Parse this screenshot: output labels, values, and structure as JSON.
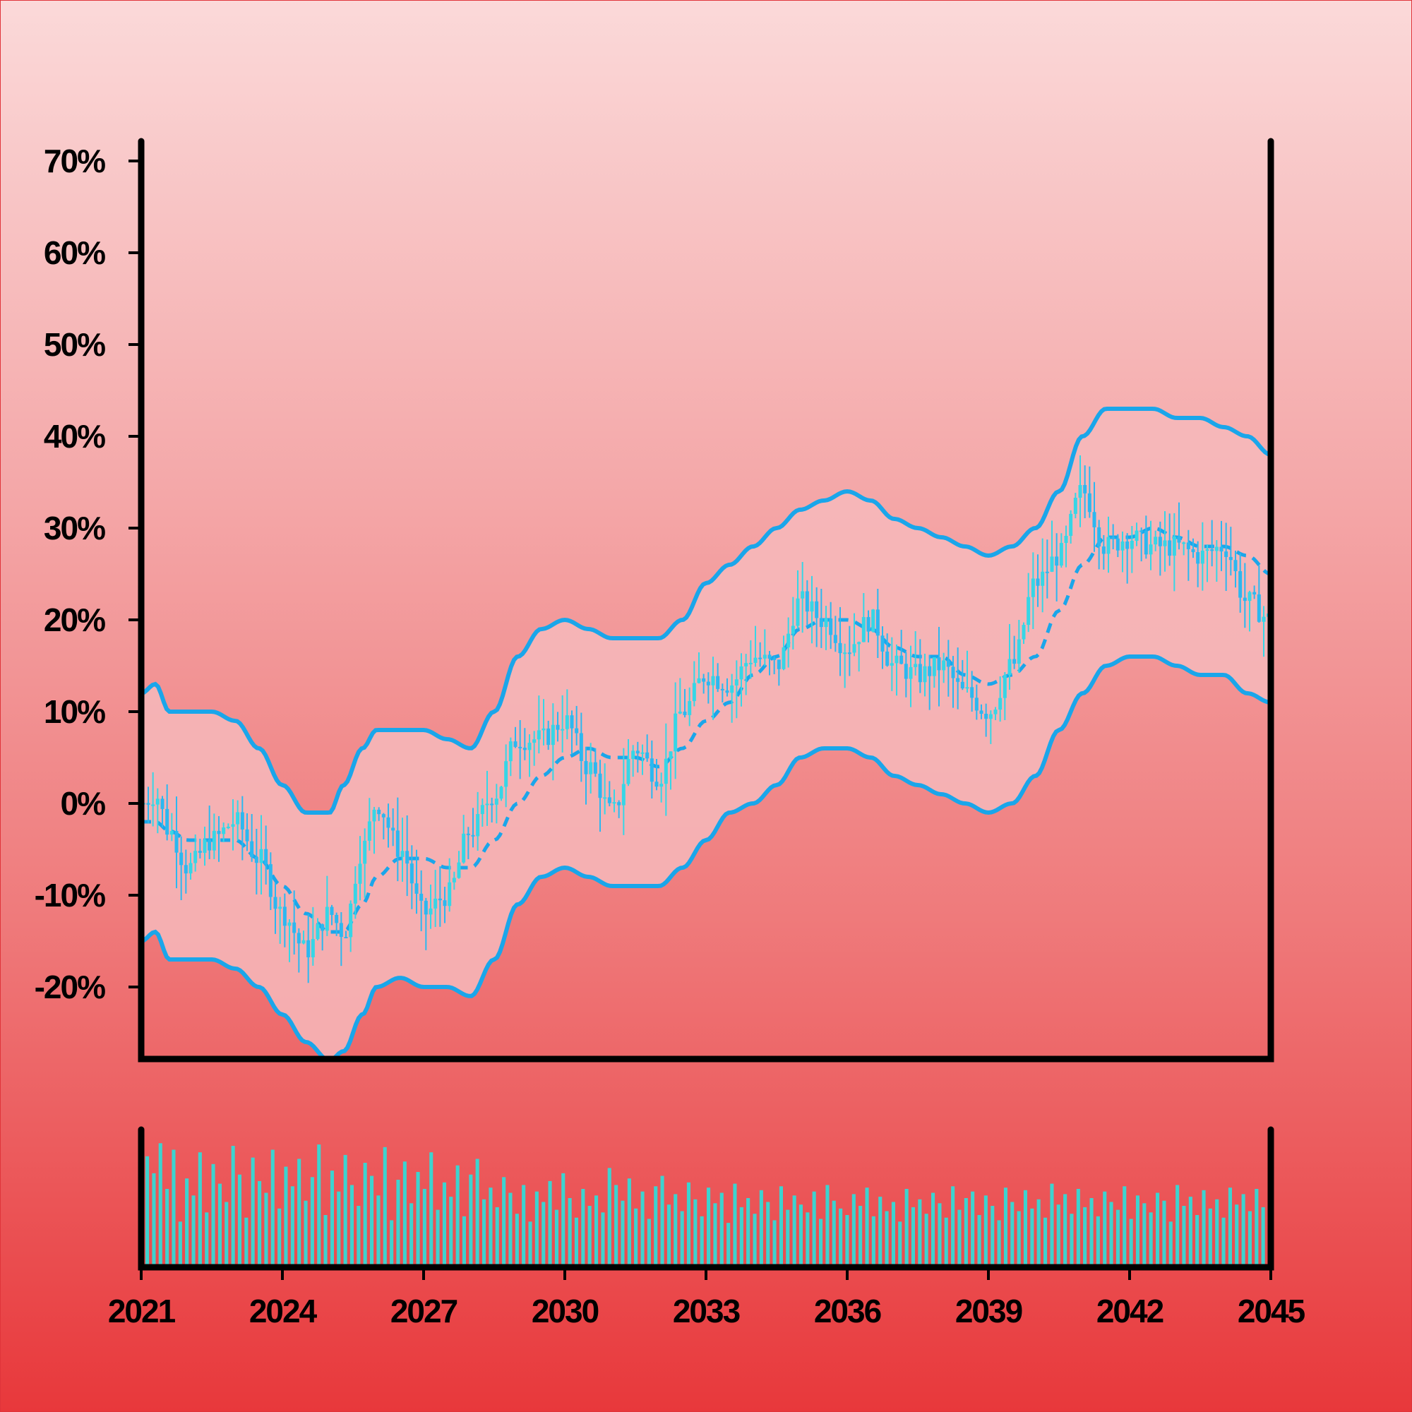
{
  "chart_data": {
    "type": "candlestick",
    "title": "",
    "xlabel": "",
    "ylabel": "",
    "x_range": [
      2021.0,
      2045.0
    ],
    "ylim": [
      -27,
      72
    ],
    "grid": false,
    "legend": "none",
    "y_ticks": [
      "70%",
      "60%",
      "50%",
      "40%",
      "30%",
      "20%",
      "10%",
      "0%",
      "-10%",
      "-20%"
    ],
    "y_tick_values": [
      70,
      60,
      50,
      40,
      30,
      20,
      10,
      0,
      -10,
      -20
    ],
    "x_ticks": [
      "2021",
      "2024",
      "2027",
      "2030",
      "2033",
      "2036",
      "2039",
      "2042",
      "2045"
    ],
    "x_tick_values": [
      2021,
      2024,
      2027,
      2030,
      2033,
      2036,
      2039,
      2042,
      2045
    ],
    "colors": {
      "candle_up": "#36d6e6",
      "candle_down": "#2bb8f0",
      "band": "#1aa6ea",
      "band_fill": "#f6b9bb",
      "volume": "#3dd3cf",
      "axis": "#000000"
    },
    "price": {
      "x": [
        2021.0,
        2021.3,
        2021.6,
        2022.0,
        2022.5,
        2023.0,
        2023.5,
        2024.0,
        2024.5,
        2025.0,
        2025.3,
        2025.7,
        2026.0,
        2026.5,
        2027.0,
        2027.5,
        2028.0,
        2028.5,
        2029.0,
        2029.5,
        2030.0,
        2030.5,
        2031.0,
        2031.5,
        2032.0,
        2032.5,
        2033.0,
        2033.5,
        2034.0,
        2034.5,
        2035.0,
        2035.5,
        2036.0,
        2036.5,
        2037.0,
        2037.5,
        2038.0,
        2038.5,
        2039.0,
        2039.5,
        2040.0,
        2040.5,
        2041.0,
        2041.5,
        2042.0,
        2042.5,
        2043.0,
        2043.5,
        2044.0,
        2044.5,
        2045.0
      ],
      "y": [
        0,
        1,
        -3,
        -7,
        -4,
        -2,
        -6,
        -12,
        -16,
        -12,
        -14,
        -5,
        0,
        -5,
        -12,
        -10,
        -3,
        1,
        7,
        7,
        9,
        4,
        -1,
        6,
        3,
        10,
        14,
        13,
        16,
        15,
        22,
        20,
        17,
        20,
        15,
        14,
        15,
        12,
        10,
        15,
        24,
        27,
        34,
        28,
        29,
        28,
        28,
        27,
        28,
        22,
        20
      ],
      "ma": [
        -2,
        -2,
        -3,
        -4,
        -4,
        -4,
        -6,
        -9,
        -12,
        -14,
        -14,
        -11,
        -8,
        -6,
        -6,
        -7,
        -7,
        -4,
        0,
        3,
        5,
        6,
        5,
        5,
        4,
        6,
        9,
        11,
        14,
        16,
        19,
        20,
        20,
        19,
        17,
        16,
        16,
        14,
        13,
        14,
        16,
        21,
        26,
        29,
        29,
        30,
        29,
        28,
        28,
        27,
        25
      ],
      "band_upper": [
        12,
        13,
        10,
        10,
        10,
        9,
        6,
        2,
        -1,
        -1,
        2,
        6,
        8,
        8,
        8,
        7,
        6,
        10,
        16,
        19,
        20,
        19,
        18,
        18,
        18,
        20,
        24,
        26,
        28,
        30,
        32,
        33,
        34,
        33,
        31,
        30,
        29,
        28,
        27,
        28,
        30,
        34,
        40,
        43,
        43,
        43,
        42,
        42,
        41,
        40,
        38
      ],
      "band_lower": [
        -15,
        -14,
        -17,
        -17,
        -17,
        -18,
        -20,
        -23,
        -26,
        -28,
        -27,
        -23,
        -20,
        -19,
        -20,
        -20,
        -21,
        -17,
        -11,
        -8,
        -7,
        -8,
        -9,
        -9,
        -9,
        -7,
        -4,
        -1,
        0,
        2,
        5,
        6,
        6,
        5,
        3,
        2,
        1,
        0,
        -1,
        0,
        3,
        8,
        12,
        15,
        16,
        16,
        15,
        14,
        14,
        12,
        11
      ]
    },
    "volume": {
      "x_range": [
        2021.0,
        2045.0
      ],
      "max": 100,
      "values": [
        85,
        72,
        95,
        60,
        90,
        35,
        68,
        55,
        88,
        42,
        79,
        64,
        50,
        93,
        71,
        38,
        84,
        66,
        57,
        90,
        45,
        77,
        62,
        83,
        51,
        69,
        94,
        40,
        74,
        58,
        86,
        63,
        47,
        80,
        70,
        55,
        92,
        36,
        67,
        81,
        49,
        73,
        60,
        88,
        44,
        65,
        54,
        78,
        39,
        71,
        83,
        52,
        61,
        46,
        69,
        57,
        41,
        63,
        35,
        58,
        50,
        66,
        44,
        72,
        53,
        38,
        60,
        47,
        55,
        42,
        76,
        63,
        51,
        68,
        45,
        58,
        37,
        62,
        70,
        48,
        56,
        43,
        65,
        52,
        39,
        61,
        49,
        57,
        34,
        64,
        46,
        53,
        41,
        59,
        50,
        36,
        62,
        44,
        55,
        48,
        42,
        58,
        37,
        63,
        51,
        45,
        40,
        56,
        47,
        61,
        39,
        54,
        43,
        50,
        35,
        60,
        46,
        52,
        41,
        57,
        49,
        38,
        62,
        44,
        53,
        58,
        40,
        55,
        47,
        36,
        61,
        50,
        43,
        59,
        45,
        52,
        38,
        64,
        48,
        56,
        41,
        60,
        46,
        53,
        39,
        58,
        50,
        44,
        62,
        37,
        55,
        49,
        42,
        57,
        51,
        35,
        63,
        47,
        54,
        40,
        59,
        45,
        52,
        38,
        61,
        48,
        56,
        43,
        60,
        46
      ]
    }
  }
}
